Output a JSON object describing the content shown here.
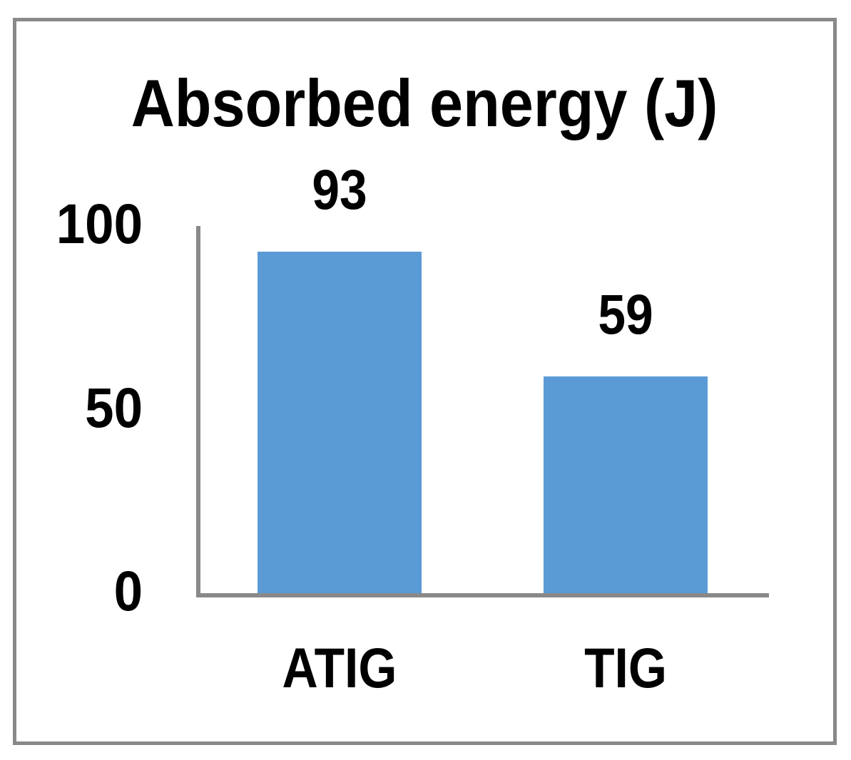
{
  "chart_data": {
    "type": "bar",
    "title": "Absorbed energy (J)",
    "categories": [
      "ATIG",
      "TIG"
    ],
    "values": [
      93,
      59
    ],
    "data_labels": [
      "93",
      "59"
    ],
    "yticks": [
      {
        "value": 100,
        "label": "100"
      },
      {
        "value": 50,
        "label": "50"
      },
      {
        "value": 0,
        "label": "0"
      }
    ],
    "ylim": [
      0,
      100
    ],
    "xlabel": "",
    "ylabel": "",
    "grid": false,
    "legend": false,
    "bar_color": "#5B9BD5",
    "axis_color": "#898989",
    "border_color": "#898989",
    "text_color": "#000000",
    "background": "#FFFFFF"
  }
}
